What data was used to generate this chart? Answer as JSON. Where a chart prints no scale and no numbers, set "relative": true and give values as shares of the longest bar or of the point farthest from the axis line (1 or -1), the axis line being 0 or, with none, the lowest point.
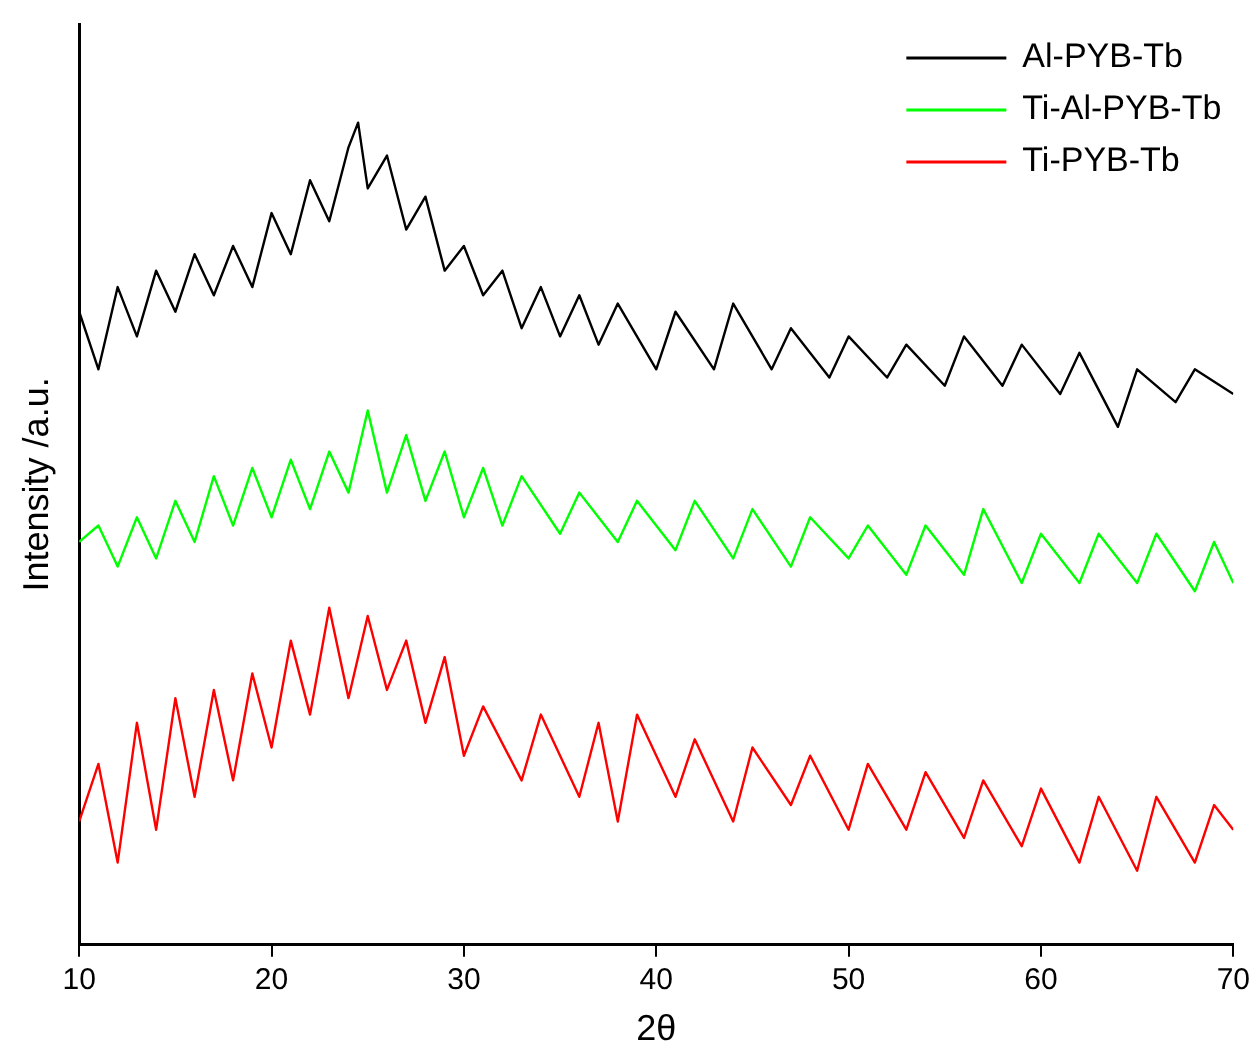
{
  "chart_data": {
    "type": "line",
    "xlabel": "2θ",
    "ylabel": "Intensity /a.u.",
    "relative": true,
    "xlim": [
      10,
      70
    ],
    "xticks": [
      10,
      20,
      30,
      40,
      50,
      60,
      70
    ],
    "grid": false,
    "legend": "top right",
    "marker": "none",
    "line_style": "solid",
    "tick_labels": "x",
    "series": [
      {
        "name": "Al-PYB-Tb",
        "color": "#000000",
        "x": [
          10,
          11,
          12,
          13,
          14,
          15,
          16,
          17,
          18,
          19,
          20,
          21,
          22,
          23,
          24,
          24.5,
          25,
          26,
          27,
          28,
          29,
          30,
          31,
          32,
          33,
          34,
          35,
          36,
          37,
          38,
          40,
          41,
          43,
          44,
          46,
          47,
          49,
          50,
          52,
          53,
          55,
          56,
          58,
          59,
          61,
          62,
          64,
          65,
          67,
          68,
          70
        ],
        "values": [
          0.77,
          0.7,
          0.8,
          0.74,
          0.82,
          0.77,
          0.84,
          0.79,
          0.85,
          0.8,
          0.89,
          0.84,
          0.93,
          0.88,
          0.97,
          1,
          0.92,
          0.96,
          0.87,
          0.91,
          0.82,
          0.85,
          0.79,
          0.82,
          0.75,
          0.8,
          0.74,
          0.79,
          0.73,
          0.78,
          0.7,
          0.77,
          0.7,
          0.78,
          0.7,
          0.75,
          0.69,
          0.74,
          0.69,
          0.73,
          0.68,
          0.74,
          0.68,
          0.73,
          0.67,
          0.72,
          0.63,
          0.7,
          0.66,
          0.7,
          0.67
        ]
      },
      {
        "name": "Ti-Al-PYB-Tb",
        "color": "#00ff00",
        "x": [
          10,
          11,
          12,
          13,
          14,
          15,
          16,
          17,
          18,
          19,
          20,
          21,
          22,
          23,
          24,
          25,
          26,
          27,
          28,
          29,
          30,
          31,
          32,
          33,
          35,
          36,
          38,
          39,
          41,
          42,
          44,
          45,
          47,
          48,
          50,
          51,
          53,
          54,
          56,
          57,
          59,
          60,
          62,
          63,
          65,
          66,
          68,
          69,
          70
        ],
        "values": [
          0.49,
          0.51,
          0.46,
          0.52,
          0.47,
          0.54,
          0.49,
          0.57,
          0.51,
          0.58,
          0.52,
          0.59,
          0.53,
          0.6,
          0.55,
          0.65,
          0.55,
          0.62,
          0.54,
          0.6,
          0.52,
          0.58,
          0.51,
          0.57,
          0.5,
          0.55,
          0.49,
          0.54,
          0.48,
          0.54,
          0.47,
          0.53,
          0.46,
          0.52,
          0.47,
          0.51,
          0.45,
          0.51,
          0.45,
          0.53,
          0.44,
          0.5,
          0.44,
          0.5,
          0.44,
          0.5,
          0.43,
          0.49,
          0.44
        ]
      },
      {
        "name": "Ti-PYB-Tb",
        "color": "#ff0000",
        "x": [
          10,
          11,
          12,
          13,
          14,
          15,
          16,
          17,
          18,
          19,
          20,
          21,
          22,
          23,
          24,
          25,
          26,
          27,
          28,
          29,
          30,
          31,
          33,
          34,
          36,
          37,
          38,
          39,
          41,
          42,
          44,
          45,
          47,
          48,
          50,
          51,
          53,
          54,
          56,
          57,
          59,
          60,
          62,
          63,
          65,
          66,
          68,
          69,
          70
        ],
        "values": [
          0.15,
          0.22,
          0.1,
          0.27,
          0.14,
          0.3,
          0.18,
          0.31,
          0.2,
          0.33,
          0.24,
          0.37,
          0.28,
          0.41,
          0.3,
          0.4,
          0.31,
          0.37,
          0.27,
          0.35,
          0.23,
          0.29,
          0.2,
          0.28,
          0.18,
          0.27,
          0.15,
          0.28,
          0.18,
          0.25,
          0.15,
          0.24,
          0.17,
          0.23,
          0.14,
          0.22,
          0.14,
          0.21,
          0.13,
          0.2,
          0.12,
          0.19,
          0.1,
          0.18,
          0.09,
          0.18,
          0.1,
          0.17,
          0.14
        ]
      }
    ]
  }
}
